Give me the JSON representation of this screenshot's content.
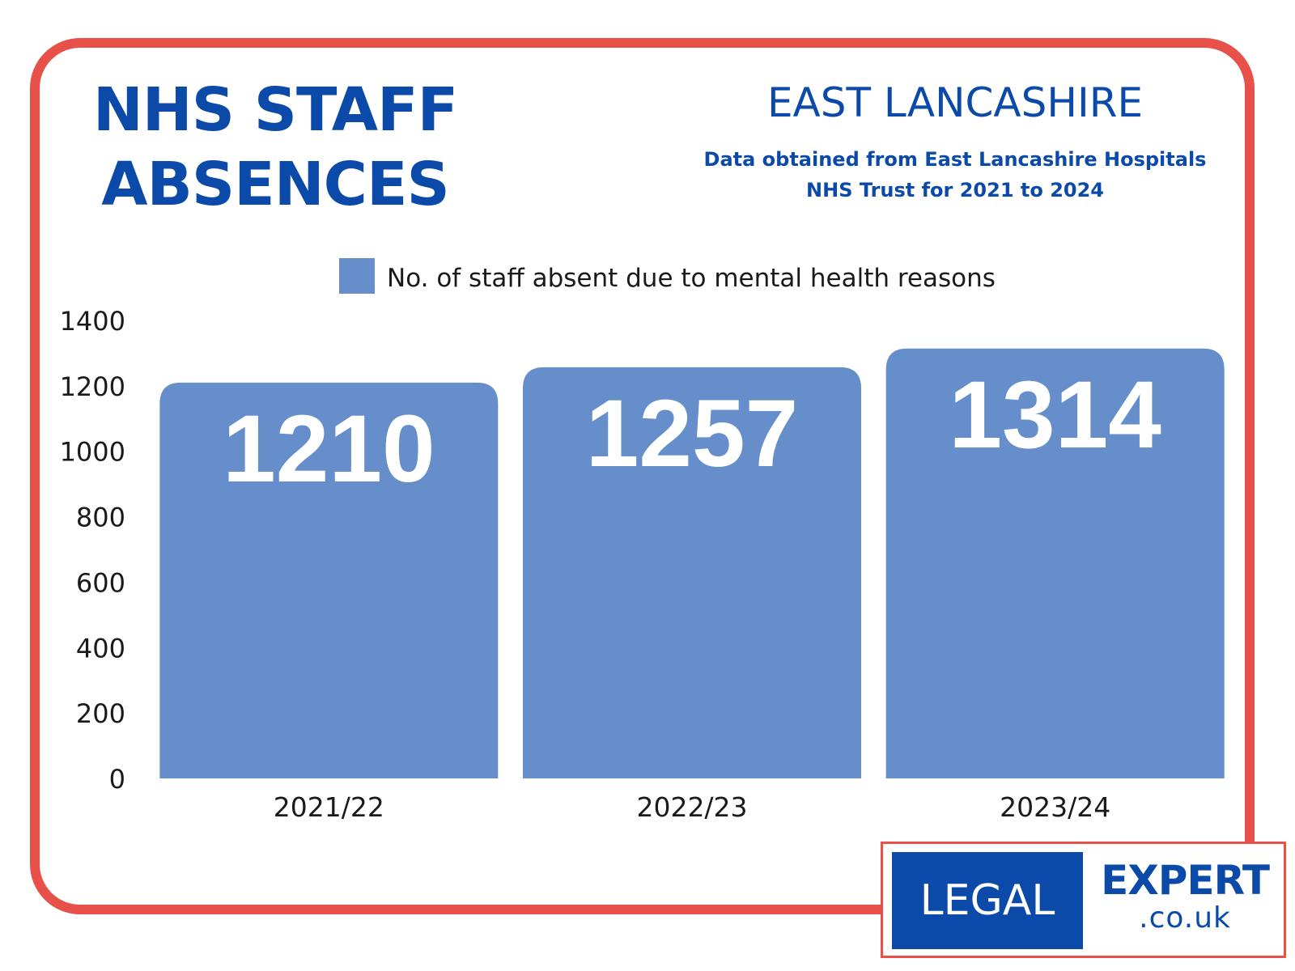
{
  "header": {
    "title_line1": "NHS STAFF",
    "title_line2": "ABSENCES",
    "region": "EAST LANCASHIRE",
    "source_line1": "Data obtained from East Lancashire Hospitals",
    "source_line2": "NHS Trust for 2021 to 2024"
  },
  "colors": {
    "frame": "#e8504a",
    "brand_blue": "#0b4aa8",
    "bar": "#668ecb",
    "bar_label": "#ffffff",
    "axis_text": "#1a1a1a"
  },
  "logo": {
    "left_text": "LEGAL",
    "right_text": "EXPERT",
    "domain_text": ".co.uk"
  },
  "chart_data": {
    "type": "bar",
    "categories": [
      "2021/22",
      "2022/23",
      "2023/24"
    ],
    "series": [
      {
        "name": "No. of staff absent due to mental health reasons",
        "values": [
          1210,
          1257,
          1314
        ]
      }
    ],
    "yticks": [
      0,
      200,
      400,
      600,
      800,
      1000,
      1200,
      1400
    ],
    "ylim": [
      0,
      1400
    ],
    "legend_position": "top-center",
    "grid": false,
    "data_labels": "inside-top"
  }
}
